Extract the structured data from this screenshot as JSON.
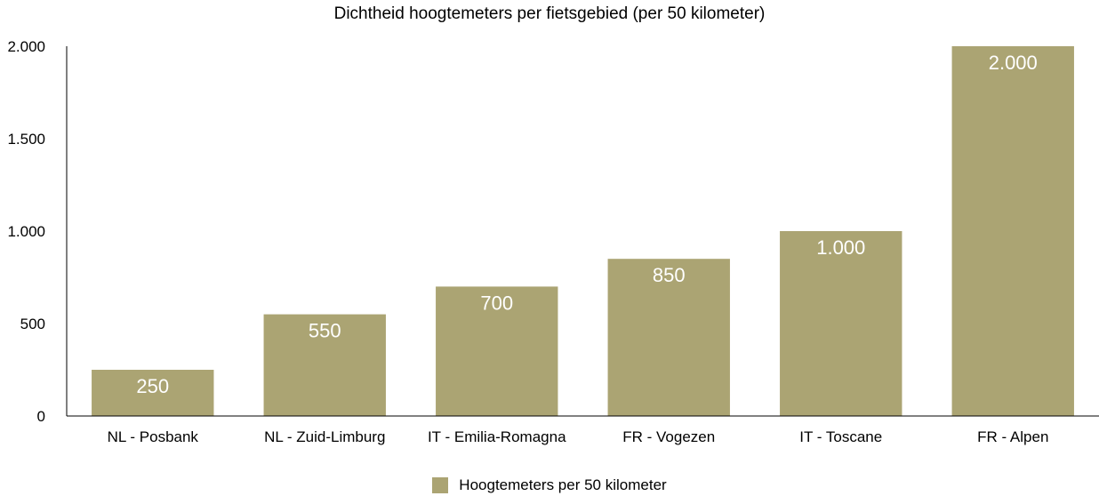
{
  "chart_data": {
    "type": "bar",
    "title": "Dichtheid hoogtemeters per fietsgebied (per 50 kilometer)",
    "categories": [
      "NL - Posbank",
      "NL - Zuid-Limburg",
      "IT - Emilia-Romagna",
      "FR - Vogezen",
      "IT - Toscane",
      "FR - Alpen"
    ],
    "series": [
      {
        "name": "Hoogtemeters per 50 kilometer",
        "values": [
          250,
          550,
          700,
          850,
          1000,
          2000
        ]
      }
    ],
    "value_labels": [
      "250",
      "550",
      "700",
      "850",
      "1.000",
      "2.000"
    ],
    "yticks": [
      0,
      500,
      1000,
      1500,
      2000
    ],
    "ytick_labels": [
      "0",
      "500",
      "1.000",
      "1.500",
      "2.000"
    ],
    "ylim": [
      0,
      2000
    ],
    "xlabel": "",
    "ylabel": "",
    "grid": false,
    "legend_position": "bottom",
    "bar_color": "#ABA473"
  }
}
